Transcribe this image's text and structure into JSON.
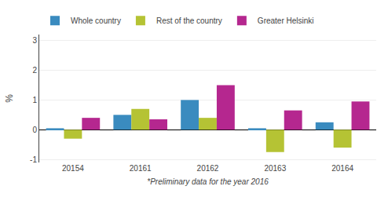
{
  "chart_data": {
    "type": "bar",
    "categories": [
      "20154",
      "20161",
      "20162",
      "20163",
      "20164"
    ],
    "series": [
      {
        "name": "Whole country",
        "color": "#3a8bbf",
        "values": [
          0.05,
          0.5,
          1.0,
          0.05,
          0.25
        ]
      },
      {
        "name": "Rest of the country",
        "color": "#b5c334",
        "values": [
          -0.3,
          0.7,
          0.4,
          -0.75,
          -0.6
        ]
      },
      {
        "name": "Greater Helsinki",
        "color": "#b5278f",
        "values": [
          0.4,
          0.35,
          1.5,
          0.65,
          0.95
        ]
      }
    ],
    "ylabel": "%",
    "xlabel": "*Preliminary data for the year 2016",
    "ylim": [
      -1.1,
      3.2
    ],
    "yticks": [
      -1,
      0,
      1,
      2,
      3
    ],
    "grid": true,
    "legend": "top"
  }
}
